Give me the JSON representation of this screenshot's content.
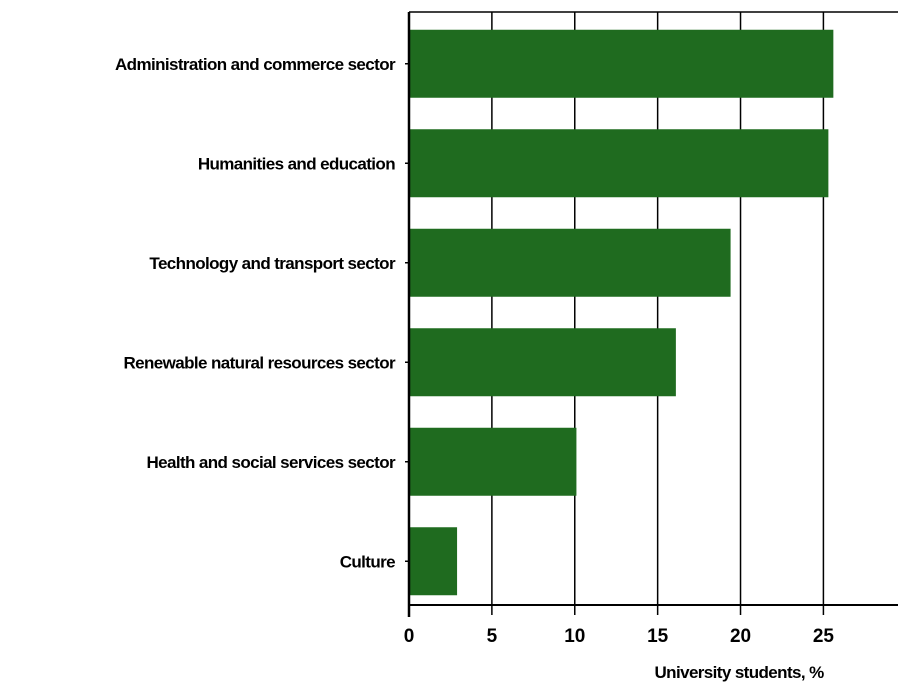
{
  "chart_data": {
    "type": "bar",
    "orientation": "horizontal",
    "categories": [
      "Administration and commerce sector",
      "Humanities and education",
      "Technology and transport sector",
      "Renewable natural resources sector",
      "Health and social services sector",
      "Culture"
    ],
    "values": [
      25.6,
      25.3,
      19.4,
      16.1,
      10.1,
      2.9
    ],
    "xlabel": "University students, %",
    "ylabel": "",
    "xlim": [
      0,
      29.5
    ],
    "xticks": [
      0,
      5,
      10,
      15,
      20,
      25
    ],
    "xtick_labels": [
      "0",
      "5",
      "10",
      "15",
      "20",
      "25"
    ],
    "grid": "vertical",
    "legend": "none",
    "colors": {
      "bar": "#1f6b1f",
      "grid": "#000000",
      "axis": "#000000"
    }
  }
}
